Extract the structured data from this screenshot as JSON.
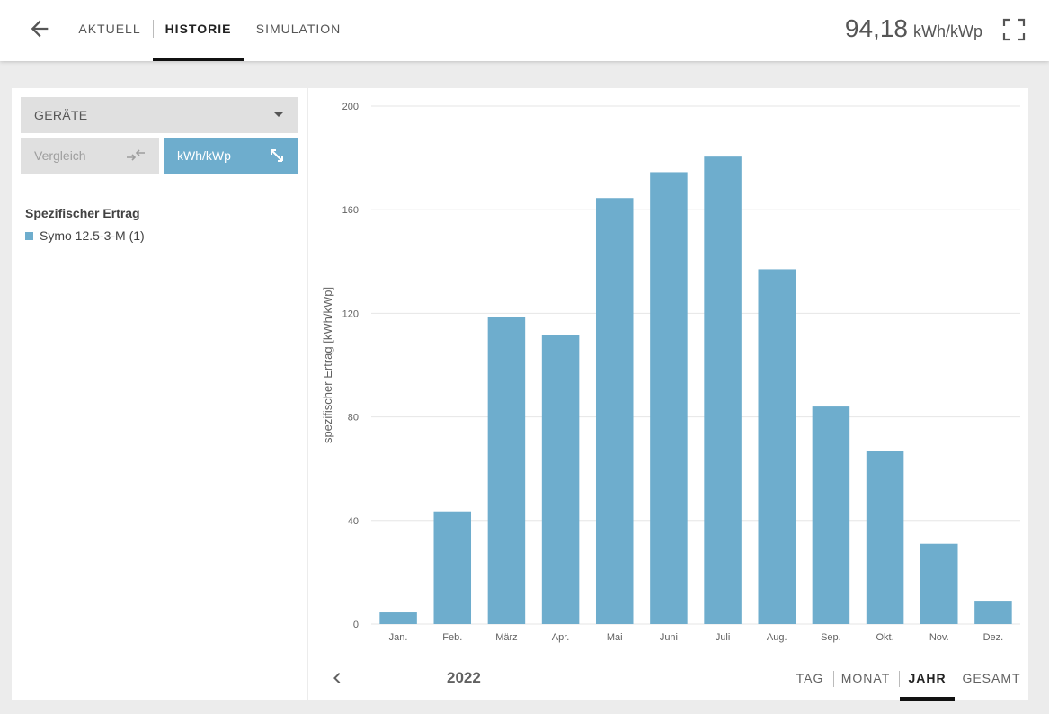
{
  "header": {
    "tabs": [
      {
        "label": "AKTUELL",
        "active": false
      },
      {
        "label": "HISTORIE",
        "active": true
      },
      {
        "label": "SIMULATION",
        "active": false
      }
    ],
    "total_value": "94,18",
    "total_unit": "kWh/kWp",
    "icons": {
      "back": "arrow-left-icon",
      "fullscreen": "fullscreen-icon"
    }
  },
  "sidebar": {
    "device_dropdown": {
      "label": "GERÄTE"
    },
    "compare_button": {
      "label": "Vergleich",
      "icon": "compare-arrows-icon"
    },
    "unit_button": {
      "label": "kWh/kWp",
      "icon": "expand-diagonal-icon"
    },
    "legend": {
      "title": "Spezifischer Ertrag",
      "items": [
        {
          "label": "Symo 12.5-3-M (1)",
          "color": "#6eadcd"
        }
      ]
    }
  },
  "chart_data": {
    "type": "bar",
    "categories": [
      "Jan.",
      "Feb.",
      "März",
      "Apr.",
      "Mai",
      "Juni",
      "Juli",
      "Aug.",
      "Sep.",
      "Okt.",
      "Nov.",
      "Dez."
    ],
    "series": [
      {
        "name": "Symo 12.5-3-M (1)",
        "values": [
          4.5,
          43.5,
          118.5,
          111.5,
          164.5,
          174.5,
          180.5,
          137,
          84,
          67,
          31,
          9
        ]
      }
    ],
    "ylabel": "spezifischer Ertrag [kWh/kWp]",
    "ylim": [
      0,
      200
    ],
    "yticks": [
      0,
      40,
      80,
      120,
      160,
      200
    ],
    "grid": true,
    "color": "#6eadcd"
  },
  "footer": {
    "year": "2022",
    "ranges": [
      {
        "label": "TAG",
        "active": false
      },
      {
        "label": "MONAT",
        "active": false
      },
      {
        "label": "JAHR",
        "active": true
      },
      {
        "label": "GESAMT",
        "active": false
      }
    ]
  }
}
